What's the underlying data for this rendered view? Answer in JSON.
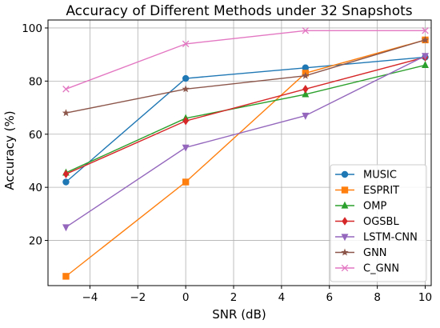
{
  "chart_data": {
    "type": "line",
    "title": "Accuracy of Different Methods under 32 Snapshots",
    "xlabel": "SNR (dB)",
    "ylabel": "Accuracy (%)",
    "x": [
      -5,
      0,
      5,
      10
    ],
    "xlim": [
      -5.75,
      10.25
    ],
    "ylim": [
      3,
      103
    ],
    "x_ticks": [
      -4,
      -2,
      0,
      2,
      4,
      6,
      8,
      10
    ],
    "x_tick_labels": [
      "−4",
      "−2",
      "0",
      "2",
      "4",
      "6",
      "8",
      "10"
    ],
    "y_ticks": [
      20,
      40,
      60,
      80,
      100
    ],
    "y_tick_labels": [
      "20",
      "40",
      "60",
      "80",
      "100"
    ],
    "grid": true,
    "legend_position": "lower-right",
    "series": [
      {
        "name": "MUSIC",
        "values": [
          42,
          81,
          85,
          89
        ],
        "color": "#1f77b4",
        "marker": "circle"
      },
      {
        "name": "ESPRIT",
        "values": [
          6.5,
          42,
          83,
          95.5
        ],
        "color": "#ff7f0e",
        "marker": "square"
      },
      {
        "name": "OMP",
        "values": [
          45.5,
          66,
          75,
          86
        ],
        "color": "#2ca02c",
        "marker": "triangle-up"
      },
      {
        "name": "OGSBL",
        "values": [
          45,
          65,
          77,
          89
        ],
        "color": "#d62728",
        "marker": "diamond"
      },
      {
        "name": "LSTM-CNN",
        "values": [
          25,
          55,
          67,
          89.5
        ],
        "color": "#9467bd",
        "marker": "triangle-down"
      },
      {
        "name": "GNN",
        "values": [
          68,
          77,
          82,
          95.5
        ],
        "color": "#8c564b",
        "marker": "star"
      },
      {
        "name": "C_GNN",
        "values": [
          77,
          94,
          99,
          99
        ],
        "color": "#e377c2",
        "marker": "x"
      }
    ]
  }
}
